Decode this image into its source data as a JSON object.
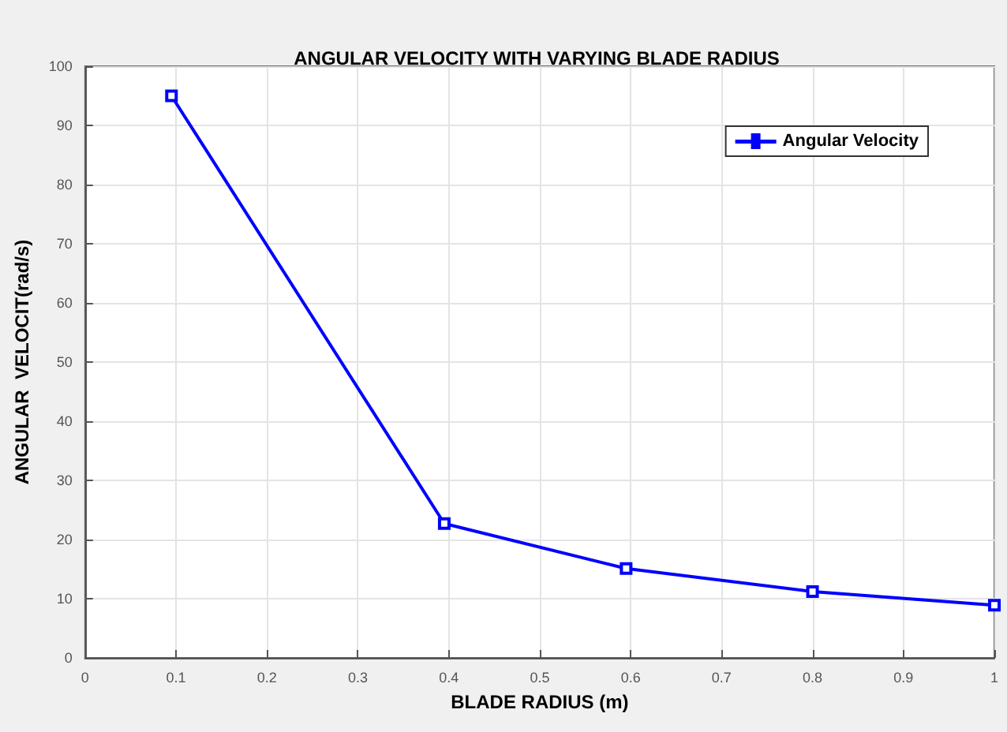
{
  "chart_data": {
    "type": "line",
    "title": "ANGULAR VELOCITY WITH VARYING BLADE RADIUS",
    "xlabel": "BLADE RADIUS (m)",
    "ylabel": "ANGULAR  VELOCIT(rad/s)",
    "x": [
      0.095,
      0.395,
      0.595,
      0.8,
      1.0
    ],
    "series": [
      {
        "name": "Angular Velocity",
        "color": "#0000ff",
        "values": [
          95,
          22.7,
          15.1,
          11.2,
          8.9
        ]
      }
    ],
    "xlim": [
      0,
      1
    ],
    "xticks": [
      0,
      0.1,
      0.2,
      0.3,
      0.4,
      0.5,
      0.6,
      0.7,
      0.8,
      0.9,
      1
    ],
    "ylim": [
      0,
      100
    ],
    "yticks": [
      0,
      10,
      20,
      30,
      40,
      50,
      60,
      70,
      80,
      90,
      100
    ],
    "grid": true,
    "legend": "top right",
    "marker": "square",
    "line_style": "solid"
  }
}
